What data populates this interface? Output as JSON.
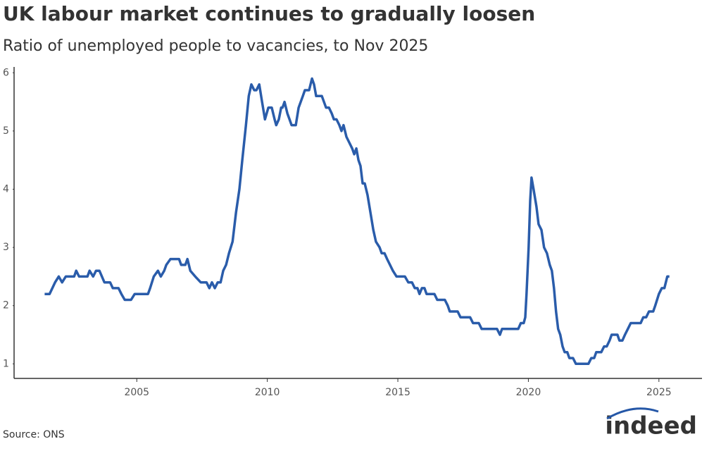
{
  "chart_data": {
    "type": "line",
    "title": "UK labour market continues to gradually loosen",
    "subtitle": "Ratio of unemployed people to vacancies, to Nov 2025",
    "source": "Source: ONS",
    "logo": "indeed",
    "xlim": [
      2000.3,
      2026.65
    ],
    "xticks": [
      2005,
      2010,
      2015,
      2020,
      2025
    ],
    "ylim": [
      0.75,
      6.1
    ],
    "yticks": [
      1,
      2,
      3,
      4,
      5,
      6
    ],
    "grid": false,
    "x": [
      2001.47,
      2001.66,
      2001.87,
      2002.01,
      2002.14,
      2002.28,
      2002.6,
      2002.68,
      2002.79,
      2003.11,
      2003.19,
      2003.33,
      2003.44,
      2003.57,
      2003.76,
      2003.98,
      2004.08,
      2004.3,
      2004.41,
      2004.54,
      2004.78,
      2004.92,
      2005.43,
      2005.51,
      2005.65,
      2005.81,
      2005.92,
      2006.05,
      2006.13,
      2006.29,
      2006.62,
      2006.7,
      2006.86,
      2006.94,
      2007.05,
      2007.24,
      2007.45,
      2007.67,
      2007.78,
      2007.88,
      2007.99,
      2008.1,
      2008.21,
      2008.31,
      2008.42,
      2008.53,
      2008.67,
      2008.8,
      2008.93,
      2009.04,
      2009.18,
      2009.29,
      2009.39,
      2009.5,
      2009.58,
      2009.69,
      2009.8,
      2009.91,
      2010.04,
      2010.17,
      2010.28,
      2010.34,
      2010.44,
      2010.53,
      2010.58,
      2010.66,
      2010.77,
      2010.85,
      2010.93,
      2011.09,
      2011.2,
      2011.36,
      2011.44,
      2011.6,
      2011.71,
      2011.79,
      2011.87,
      2012.09,
      2012.25,
      2012.36,
      2012.47,
      2012.55,
      2012.65,
      2012.76,
      2012.84,
      2012.92,
      2013.03,
      2013.14,
      2013.25,
      2013.33,
      2013.41,
      2013.49,
      2013.57,
      2013.65,
      2013.73,
      2013.84,
      2013.95,
      2014.06,
      2014.16,
      2014.3,
      2014.38,
      2014.49,
      2014.59,
      2014.7,
      2014.81,
      2014.95,
      2015.27,
      2015.4,
      2015.54,
      2015.65,
      2015.75,
      2015.83,
      2015.92,
      2016.02,
      2016.1,
      2016.4,
      2016.51,
      2016.8,
      2016.91,
      2016.99,
      2017.29,
      2017.4,
      2017.77,
      2017.88,
      2018.1,
      2018.21,
      2018.8,
      2018.91,
      2018.99,
      2019.61,
      2019.71,
      2019.82,
      2019.88,
      2019.93,
      2020.01,
      2020.07,
      2020.12,
      2020.2,
      2020.31,
      2020.39,
      2020.5,
      2020.6,
      2020.71,
      2020.82,
      2020.9,
      2020.98,
      2021.06,
      2021.14,
      2021.22,
      2021.31,
      2021.39,
      2021.49,
      2021.57,
      2021.71,
      2021.82,
      2022.3,
      2022.41,
      2022.52,
      2022.6,
      2022.79,
      2022.9,
      2023.0,
      2023.11,
      2023.19,
      2023.41,
      2023.49,
      2023.6,
      2023.7,
      2023.81,
      2023.92,
      2024.3,
      2024.4,
      2024.51,
      2024.62,
      2024.78,
      2024.86,
      2025.0,
      2025.11,
      2025.21,
      2025.32,
      2025.4
    ],
    "series": [
      {
        "color": "#2a5caa",
        "values": [
          2.2,
          2.2,
          2.4,
          2.5,
          2.4,
          2.5,
          2.5,
          2.6,
          2.5,
          2.5,
          2.6,
          2.5,
          2.6,
          2.6,
          2.4,
          2.4,
          2.3,
          2.3,
          2.2,
          2.1,
          2.1,
          2.2,
          2.2,
          2.3,
          2.5,
          2.6,
          2.5,
          2.6,
          2.7,
          2.8,
          2.8,
          2.7,
          2.7,
          2.8,
          2.6,
          2.5,
          2.4,
          2.4,
          2.3,
          2.4,
          2.3,
          2.4,
          2.4,
          2.6,
          2.7,
          2.9,
          3.1,
          3.6,
          4.0,
          4.5,
          5.1,
          5.6,
          5.8,
          5.7,
          5.7,
          5.8,
          5.5,
          5.2,
          5.4,
          5.4,
          5.2,
          5.1,
          5.2,
          5.4,
          5.4,
          5.5,
          5.3,
          5.2,
          5.1,
          5.1,
          5.4,
          5.6,
          5.7,
          5.7,
          5.9,
          5.8,
          5.6,
          5.6,
          5.4,
          5.4,
          5.3,
          5.2,
          5.2,
          5.1,
          5.0,
          5.1,
          4.9,
          4.8,
          4.7,
          4.6,
          4.7,
          4.5,
          4.4,
          4.1,
          4.1,
          3.9,
          3.6,
          3.3,
          3.1,
          3.0,
          2.9,
          2.9,
          2.8,
          2.7,
          2.6,
          2.5,
          2.5,
          2.4,
          2.4,
          2.3,
          2.3,
          2.2,
          2.3,
          2.3,
          2.2,
          2.2,
          2.1,
          2.1,
          2.0,
          1.9,
          1.9,
          1.8,
          1.8,
          1.7,
          1.7,
          1.6,
          1.6,
          1.5,
          1.6,
          1.6,
          1.7,
          1.7,
          1.8,
          2.2,
          3.0,
          3.8,
          4.2,
          4.0,
          3.7,
          3.4,
          3.3,
          3.0,
          2.9,
          2.7,
          2.6,
          2.3,
          1.9,
          1.6,
          1.5,
          1.3,
          1.2,
          1.2,
          1.1,
          1.1,
          1.0,
          1.0,
          1.1,
          1.1,
          1.2,
          1.2,
          1.3,
          1.3,
          1.4,
          1.5,
          1.5,
          1.4,
          1.4,
          1.5,
          1.6,
          1.7,
          1.7,
          1.8,
          1.8,
          1.9,
          1.9,
          2.0,
          2.2,
          2.3,
          2.3,
          2.5,
          2.5
        ]
      }
    ]
  }
}
